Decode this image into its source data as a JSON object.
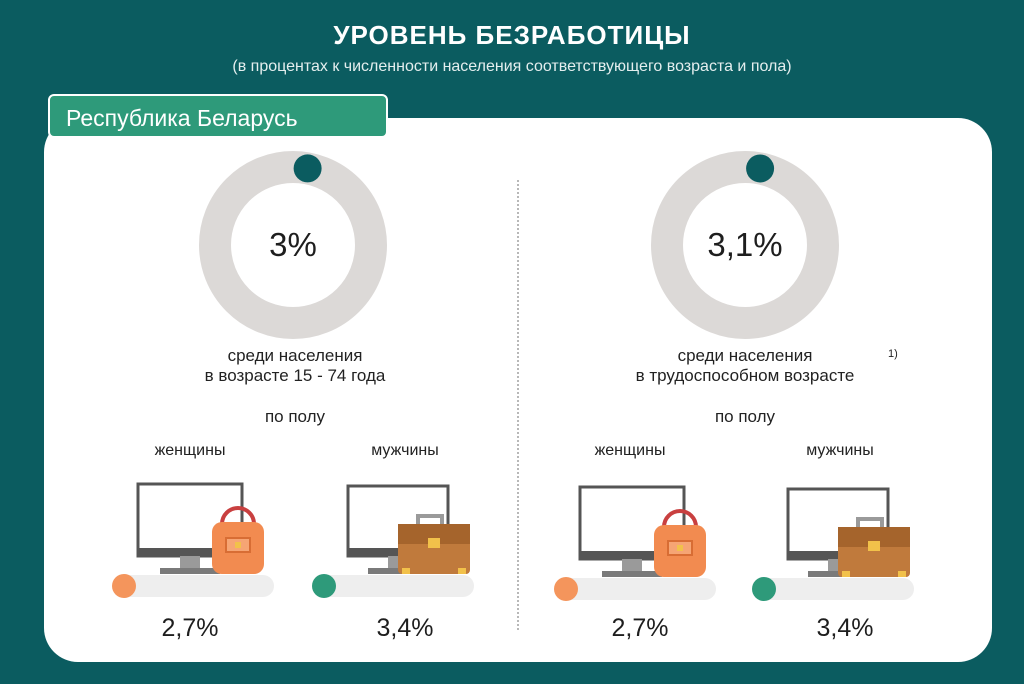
{
  "header": {
    "title": "УРОВЕНЬ БЕЗРАБОТИЦЫ",
    "subtitle": "(в процентах к численности населения соответствующего возраста и пола)"
  },
  "region": "Республика Беларусь",
  "colors": {
    "background": "#0b5c60",
    "ring_track": "#dcd9d7",
    "ring_marker": "#0b5c60",
    "women_marker": "#f4955c",
    "men_marker": "#2e9a7a",
    "tab": "#2e9a7a"
  },
  "panels": [
    {
      "value_label": "3%",
      "caption_line1": "среди населения",
      "caption_line2": "в возрасте 15 - 74 года",
      "footnote": "",
      "by_sex_label": "по полу",
      "women_label": "женщины",
      "men_label": "мужчины",
      "women_value": "2,7%",
      "men_value": "3,4%"
    },
    {
      "value_label": "3,1%",
      "caption_line1": "среди населения",
      "caption_line2": "в трудоспособном возрасте",
      "footnote": "1)",
      "by_sex_label": "по полу",
      "women_label": "женщины",
      "men_label": "мужчины",
      "women_value": "2,7%",
      "men_value": "3,4%"
    }
  ],
  "chart_data": [
    {
      "type": "pie",
      "title": "среди населения в возрасте 15 - 74 года",
      "total": 3.0,
      "by_sex": [
        {
          "name": "женщины",
          "value": 2.7
        },
        {
          "name": "мужчины",
          "value": 3.4
        }
      ],
      "unit": "%"
    },
    {
      "type": "pie",
      "title": "среди населения в трудоспособном возрасте",
      "total": 3.1,
      "by_sex": [
        {
          "name": "женщины",
          "value": 2.7
        },
        {
          "name": "мужчины",
          "value": 3.4
        }
      ],
      "unit": "%"
    }
  ]
}
